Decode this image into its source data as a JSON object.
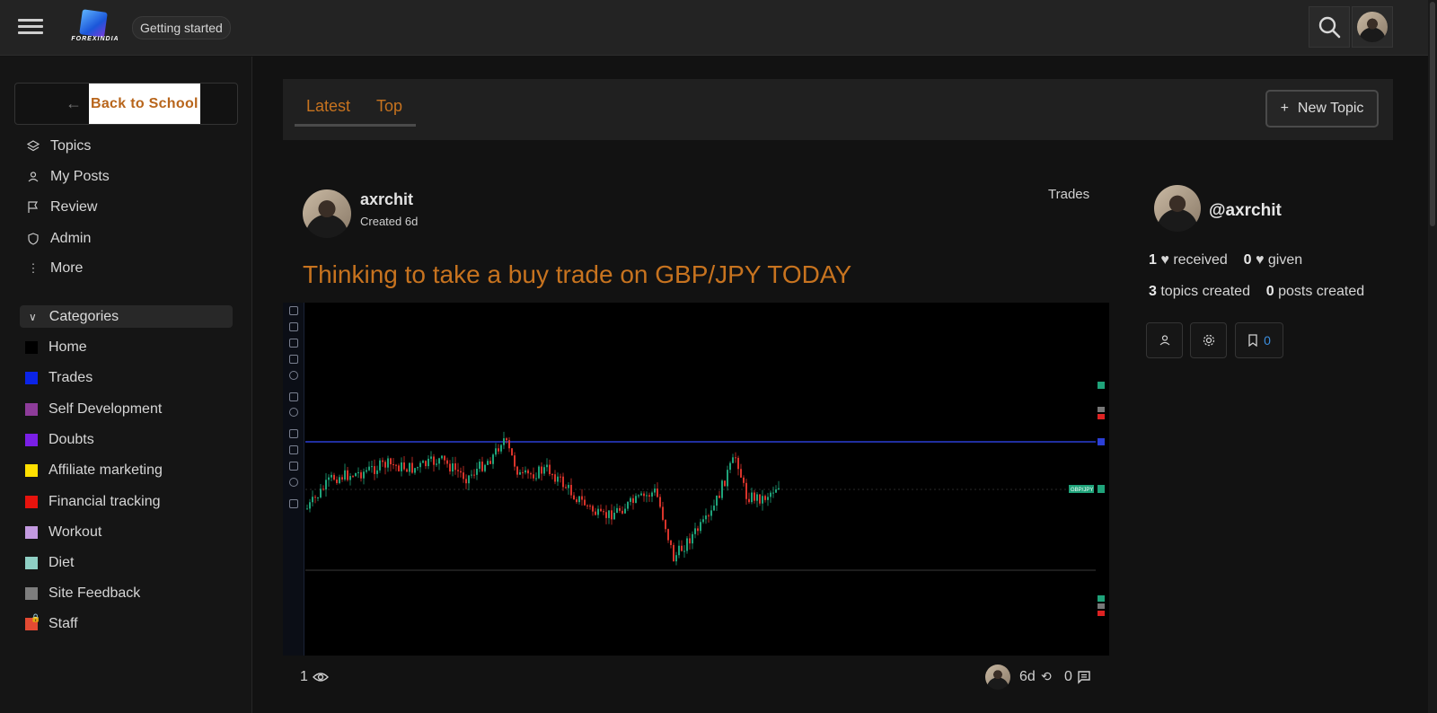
{
  "header": {
    "logo_text": "FOREXINDIA",
    "getting_started": "Getting started"
  },
  "sidebar": {
    "back_label": "Back to School",
    "nav": [
      {
        "label": "Topics",
        "icon": "layers-icon"
      },
      {
        "label": "My Posts",
        "icon": "user-icon"
      },
      {
        "label": "Review",
        "icon": "flag-icon"
      },
      {
        "label": "Admin",
        "icon": "shield-icon"
      },
      {
        "label": "More",
        "icon": "dots-vertical-icon"
      }
    ],
    "categories_label": "Categories",
    "categories": [
      {
        "label": "Home",
        "color": "#000000"
      },
      {
        "label": "Trades",
        "color": "#0b24e8"
      },
      {
        "label": "Self Development",
        "color": "#8e3c9a"
      },
      {
        "label": "Doubts",
        "color": "#7a1fe6"
      },
      {
        "label": "Affiliate marketing",
        "color": "#ffe000"
      },
      {
        "label": "Financial tracking",
        "color": "#e7130d"
      },
      {
        "label": "Workout",
        "color": "#c39ae0"
      },
      {
        "label": "Diet",
        "color": "#8fcfc4"
      },
      {
        "label": "Site Feedback",
        "color": "#7e7e7e"
      },
      {
        "label": "Staff",
        "color": "#e34a33"
      }
    ]
  },
  "tabs": {
    "latest": "Latest",
    "top": "Top",
    "new_topic": "New Topic"
  },
  "post": {
    "author": "axrchit",
    "created": "Created 6d",
    "category": "Trades",
    "title": "Thinking to take a buy trade on GBP/JPY TODAY",
    "chart_tag": "GBP/JPY",
    "views": "1",
    "age": "6d",
    "replies": "0"
  },
  "profile": {
    "handle": "@axrchit",
    "received_count": "1",
    "received_label": "received",
    "given_count": "0",
    "given_label": "given",
    "topics_count": "3",
    "topics_label": "topics created",
    "posts_count": "0",
    "posts_label": "posts created",
    "bookmarks": "0"
  },
  "colors": {
    "accent": "#c7731f",
    "background": "#121212"
  }
}
